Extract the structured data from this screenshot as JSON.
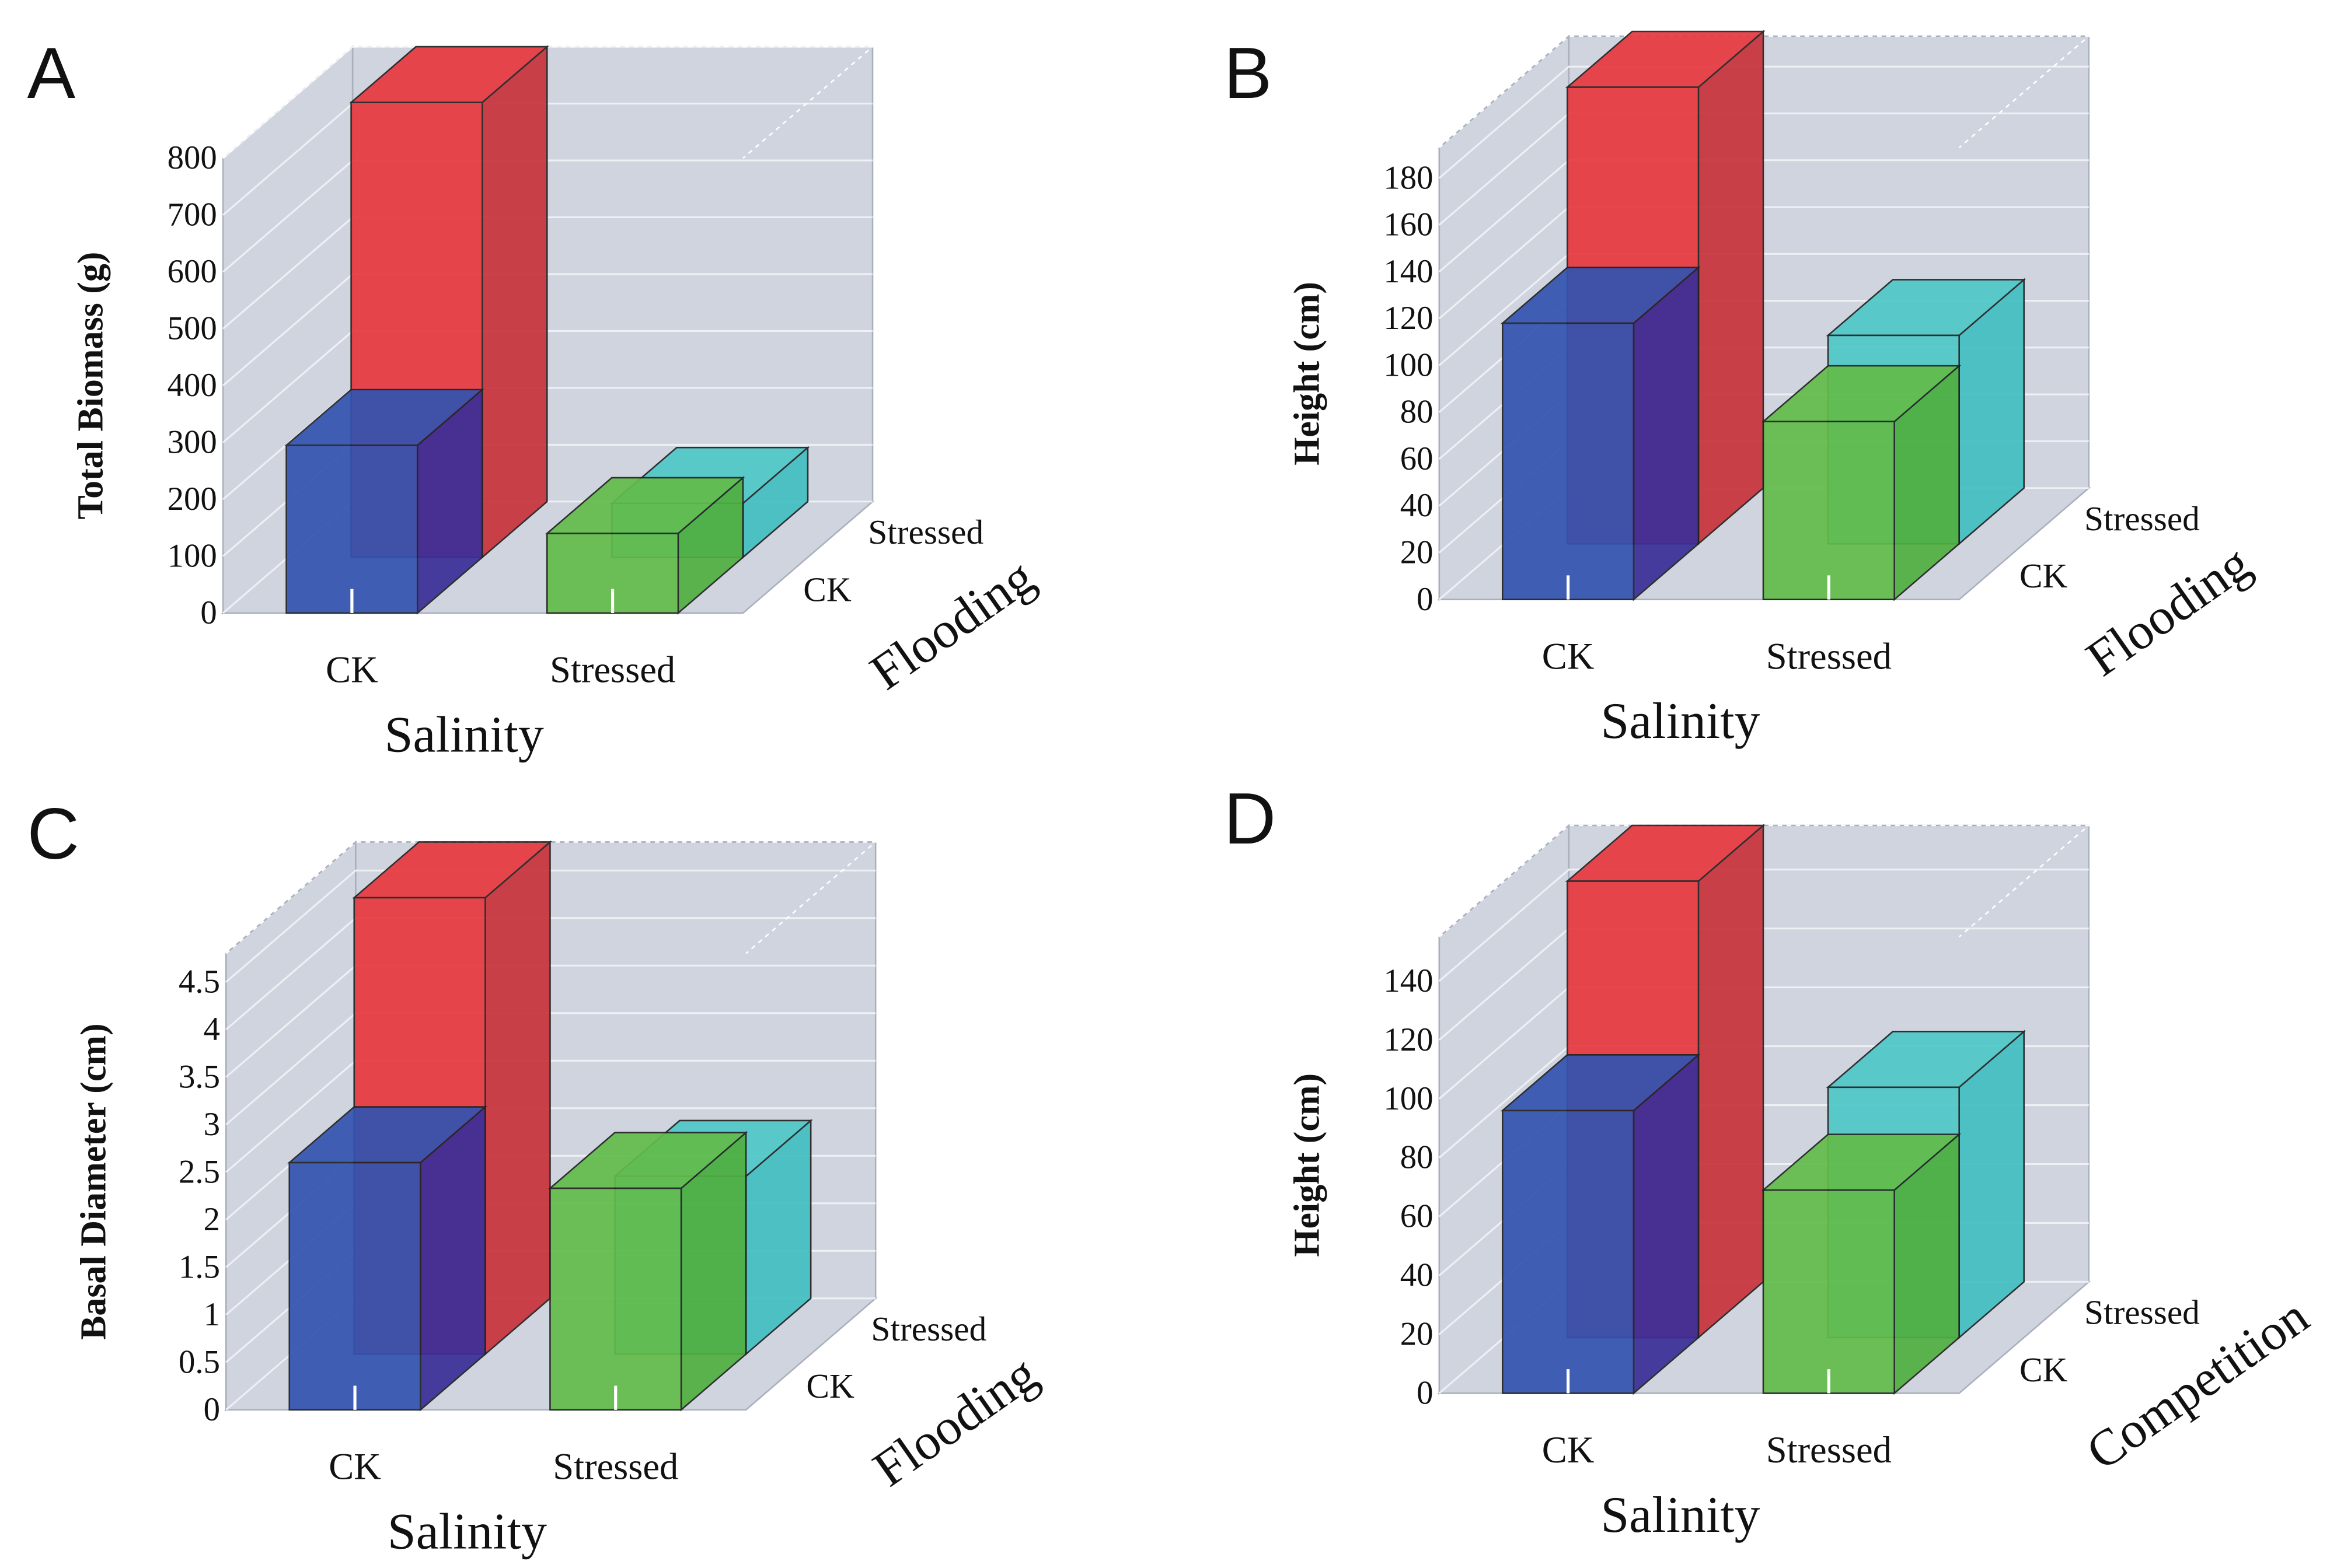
{
  "colors": {
    "wall": "#cfd4df",
    "wall_stroke": "#a9afbd",
    "grid": "#eef0f4",
    "blue": "#3353b0",
    "blue_side": "#3a2f98",
    "red": "#e8383f",
    "red_side": "#c8333b",
    "green": "#62bd4a",
    "green_side": "#50b040",
    "cyan": "#4ec8c8",
    "cyan_side": "#42bfc2"
  },
  "chart_data": [
    {
      "type": "bar3d",
      "panel": "A",
      "ylabel": "Total Biomass (g)",
      "xlabel": "Salinity",
      "zlabel": "Flooding",
      "x_categories": [
        "CK",
        "Stressed"
      ],
      "z_categories": [
        "CK",
        "Stressed"
      ],
      "ylim": [
        0,
        800
      ],
      "ticks": [
        "0",
        "100",
        "200",
        "300",
        "400",
        "500",
        "600",
        "700",
        "800"
      ],
      "series": [
        {
          "name": "Flooding CK",
          "values": [
            295,
            140
          ]
        },
        {
          "name": "Flooding Stressed",
          "values": [
            800,
            95
          ]
        }
      ]
    },
    {
      "type": "bar3d",
      "panel": "B",
      "ylabel": "Height (cm)",
      "xlabel": "Salinity",
      "zlabel": "Flooding",
      "x_categories": [
        "CK",
        "Stressed"
      ],
      "z_categories": [
        "CK",
        "Stressed"
      ],
      "ylim": [
        0,
        193
      ],
      "ticks": [
        "0",
        "20",
        "40",
        "60",
        "80",
        "100",
        "120",
        "140",
        "160",
        "180"
      ],
      "series": [
        {
          "name": "Flooding CK",
          "values": [
            118,
            76
          ]
        },
        {
          "name": "Flooding Stressed",
          "values": [
            195,
            89
          ]
        }
      ]
    },
    {
      "type": "bar3d",
      "panel": "C",
      "ylabel": "Basal Diameter (cm)",
      "xlabel": "Salinity",
      "zlabel": "Flooding",
      "x_categories": [
        "CK",
        "Stressed"
      ],
      "z_categories": [
        "CK",
        "Stressed"
      ],
      "ylim": [
        0,
        4.8
      ],
      "ticks": [
        "0",
        "0.5",
        "1",
        "1.5",
        "2",
        "2.5",
        "3",
        "3.5",
        "4",
        "4.5"
      ],
      "series": [
        {
          "name": "Flooding CK",
          "values": [
            2.6,
            2.33
          ]
        },
        {
          "name": "Flooding Stressed",
          "values": [
            4.8,
            1.87
          ]
        }
      ]
    },
    {
      "type": "bar3d",
      "panel": "D",
      "ylabel": "Height (cm)",
      "xlabel": "Salinity",
      "zlabel": "Competition",
      "x_categories": [
        "CK",
        "Stressed"
      ],
      "z_categories": [
        "CK",
        "Stressed"
      ],
      "ylim": [
        0,
        155
      ],
      "ticks": [
        "0",
        "20",
        "40",
        "60",
        "80",
        "100",
        "120",
        "140"
      ],
      "series": [
        {
          "name": "Competition CK",
          "values": [
            96,
            69
          ]
        },
        {
          "name": "Competition Stressed",
          "values": [
            155,
            85
          ]
        }
      ]
    }
  ]
}
